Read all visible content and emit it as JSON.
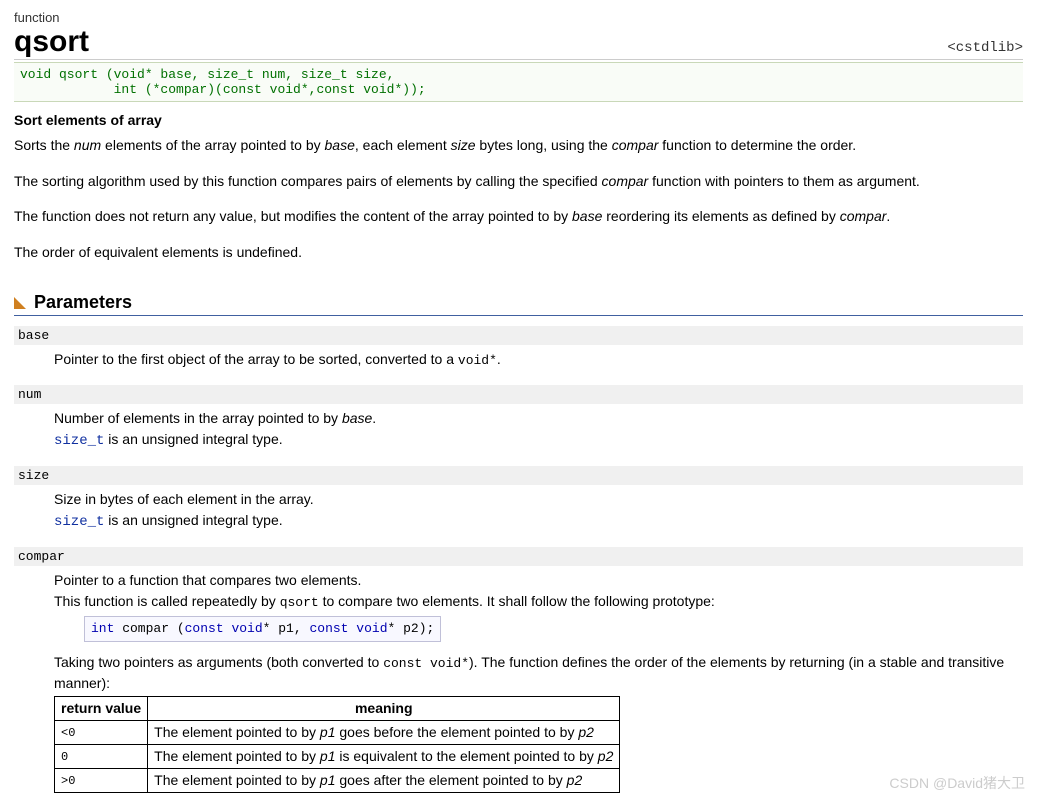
{
  "header": {
    "label": "function",
    "name": "qsort",
    "include": "<cstdlib>"
  },
  "signature": "void qsort (void* base, size_t num, size_t size,\n            int (*compar)(const void*,const void*));",
  "subtitle": "Sort elements of array",
  "desc": {
    "p1_a": "Sorts the ",
    "p1_num": "num",
    "p1_b": " elements of the array pointed to by ",
    "p1_base": "base",
    "p1_c": ", each element ",
    "p1_size": "size",
    "p1_d": " bytes long, using the ",
    "p1_compar": "compar",
    "p1_e": " function to determine the order.",
    "p2_a": "The sorting algorithm used by this function compares pairs of elements by calling the specified ",
    "p2_compar": "compar",
    "p2_b": " function with pointers to them as argument.",
    "p3_a": "The function does not return any value, but modifies the content of the array pointed to by ",
    "p3_base": "base",
    "p3_b": " reordering its elements as defined by ",
    "p3_compar": "compar",
    "p3_c": ".",
    "p4": "The order of equivalent elements is undefined."
  },
  "section_params": "Parameters",
  "params": {
    "base": {
      "name": "base",
      "line1_a": "Pointer to the first object of the array to be sorted, converted to a ",
      "line1_code": "void*",
      "line1_b": "."
    },
    "num": {
      "name": "num",
      "line1_a": "Number of elements in the array pointed to by ",
      "line1_em": "base",
      "line1_b": ".",
      "line2_type": "size_t",
      "line2_rest": " is an unsigned integral type."
    },
    "size": {
      "name": "size",
      "line1": "Size in bytes of each element in the array.",
      "line2_type": "size_t",
      "line2_rest": " is an unsigned integral type."
    },
    "compar": {
      "name": "compar",
      "line1": "Pointer to a function that compares two elements.",
      "line2_a": "This function is called repeatedly by ",
      "line2_code": "qsort",
      "line2_b": " to compare two elements. It shall follow the following prototype:",
      "proto_int": "int",
      "proto_mid": " compar (",
      "proto_const1": "const",
      "proto_void1": " void",
      "proto_p1": "* p1, ",
      "proto_const2": "const",
      "proto_void2": " void",
      "proto_p2": "* p2);",
      "after_a": "Taking two pointers as arguments (both converted to ",
      "after_code": "const void*",
      "after_b": "). The function defines the order of the elements by returning (in a stable and transitive manner):"
    }
  },
  "table": {
    "h1": "return value",
    "h2": "meaning",
    "rows": [
      {
        "code": "<0",
        "m_a": "The element pointed to by ",
        "m_p1": "p1",
        "m_b": " goes before the element pointed to by ",
        "m_p2": "p2",
        "m_c": ""
      },
      {
        "code": "0",
        "m_a": "The element pointed to by ",
        "m_p1": "p1",
        "m_b": " is equivalent to the element pointed to by ",
        "m_p2": "p2",
        "m_c": ""
      },
      {
        "code": ">0",
        "m_a": "The element pointed to by ",
        "m_p1": "p1",
        "m_b": " goes after the element pointed to by ",
        "m_p2": "p2",
        "m_c": ""
      }
    ]
  },
  "watermark": "CSDN @David猪大卫"
}
